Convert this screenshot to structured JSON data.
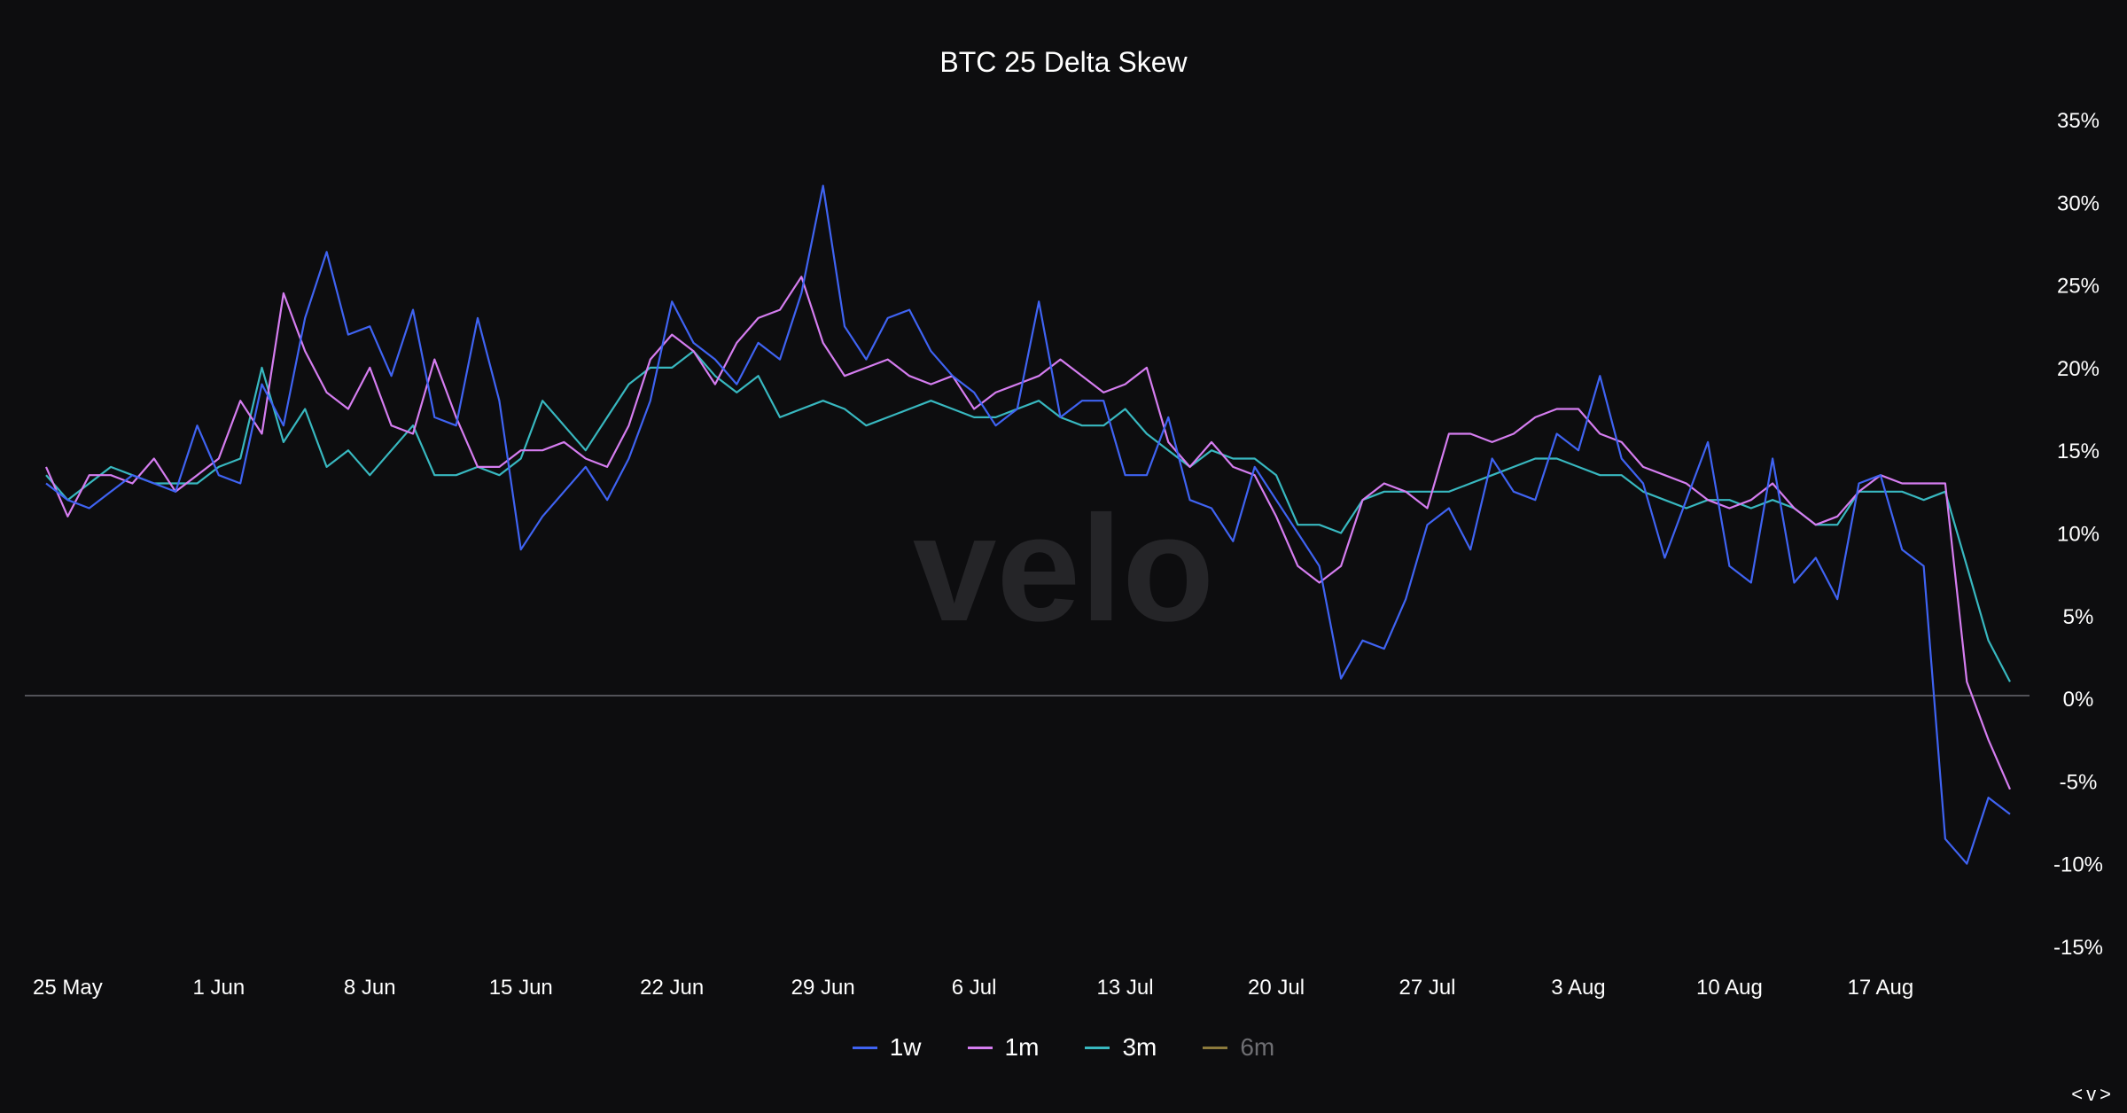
{
  "header": {
    "title": "BTC 25 Delta Skew"
  },
  "watermark": "velo",
  "nav": {
    "arrows": "<v>"
  },
  "legend": [
    {
      "label": "1w",
      "color": "#3f63f2",
      "active": true
    },
    {
      "label": "1m",
      "color": "#d57df0",
      "active": true
    },
    {
      "label": "3m",
      "color": "#38b8c0",
      "active": true
    },
    {
      "label": "6m",
      "color": "#8c7a3c",
      "active": false
    }
  ],
  "chart_data": {
    "type": "line",
    "title": "BTC 25 Delta Skew",
    "xlabel": "",
    "ylabel": "",
    "ylim": [
      -15,
      35
    ],
    "y_axis_position": "right",
    "y_ticks": [
      35,
      30,
      25,
      20,
      15,
      10,
      5,
      0,
      -5,
      -10,
      -15
    ],
    "y_tick_labels": [
      "35%",
      "30%",
      "25%",
      "20%",
      "15%",
      "10%",
      "5%",
      "0%",
      "-5%",
      "-10%",
      "-15%"
    ],
    "x_range": [
      "2023-05-24",
      "2023-08-23"
    ],
    "x_tick_labels": [
      "25 May",
      "1 Jun",
      "8 Jun",
      "15 Jun",
      "22 Jun",
      "29 Jun",
      "6 Jul",
      "13 Jul",
      "20 Jul",
      "27 Jul",
      "3 Aug",
      "10 Aug",
      "17 Aug"
    ],
    "x_tick_dates": [
      "2023-05-25",
      "2023-06-01",
      "2023-06-08",
      "2023-06-15",
      "2023-06-22",
      "2023-06-29",
      "2023-07-06",
      "2023-07-13",
      "2023-07-20",
      "2023-07-27",
      "2023-08-03",
      "2023-08-10",
      "2023-08-17"
    ],
    "zero_line": true,
    "legend_position": "bottom-center",
    "series": [
      {
        "name": "1w",
        "color": "#3f63f2",
        "x": [
          "2023-05-24",
          "2023-05-25",
          "2023-05-26",
          "2023-05-27",
          "2023-05-28",
          "2023-05-29",
          "2023-05-30",
          "2023-05-31",
          "2023-06-01",
          "2023-06-02",
          "2023-06-03",
          "2023-06-04",
          "2023-06-05",
          "2023-06-06",
          "2023-06-07",
          "2023-06-08",
          "2023-06-09",
          "2023-06-10",
          "2023-06-11",
          "2023-06-12",
          "2023-06-13",
          "2023-06-14",
          "2023-06-15",
          "2023-06-16",
          "2023-06-17",
          "2023-06-18",
          "2023-06-19",
          "2023-06-20",
          "2023-06-21",
          "2023-06-22",
          "2023-06-23",
          "2023-06-24",
          "2023-06-25",
          "2023-06-26",
          "2023-06-27",
          "2023-06-28",
          "2023-06-29",
          "2023-06-30",
          "2023-07-01",
          "2023-07-02",
          "2023-07-03",
          "2023-07-04",
          "2023-07-05",
          "2023-07-06",
          "2023-07-07",
          "2023-07-08",
          "2023-07-09",
          "2023-07-10",
          "2023-07-11",
          "2023-07-12",
          "2023-07-13",
          "2023-07-14",
          "2023-07-15",
          "2023-07-16",
          "2023-07-17",
          "2023-07-18",
          "2023-07-19",
          "2023-07-20",
          "2023-07-21",
          "2023-07-22",
          "2023-07-23",
          "2023-07-24",
          "2023-07-25",
          "2023-07-26",
          "2023-07-27",
          "2023-07-28",
          "2023-07-29",
          "2023-07-30",
          "2023-07-31",
          "2023-08-01",
          "2023-08-02",
          "2023-08-03",
          "2023-08-04",
          "2023-08-05",
          "2023-08-06",
          "2023-08-07",
          "2023-08-08",
          "2023-08-09",
          "2023-08-10",
          "2023-08-11",
          "2023-08-12",
          "2023-08-13",
          "2023-08-14",
          "2023-08-15",
          "2023-08-16",
          "2023-08-17",
          "2023-08-18",
          "2023-08-19",
          "2023-08-20",
          "2023-08-21",
          "2023-08-22",
          "2023-08-23"
        ],
        "values": [
          13.0,
          12.0,
          11.5,
          12.5,
          13.5,
          13.0,
          12.5,
          16.5,
          13.5,
          13.0,
          19.0,
          16.5,
          23.0,
          27.0,
          22.0,
          22.5,
          19.5,
          23.5,
          17.0,
          16.5,
          23.0,
          18.0,
          9.0,
          11.0,
          12.5,
          14.0,
          12.0,
          14.5,
          18.0,
          24.0,
          21.5,
          20.5,
          19.0,
          21.5,
          20.5,
          24.5,
          31.0,
          22.5,
          20.5,
          23.0,
          23.5,
          21.0,
          19.5,
          18.5,
          16.5,
          17.5,
          24.0,
          17.0,
          18.0,
          18.0,
          13.5,
          13.5,
          17.0,
          12.0,
          11.5,
          9.5,
          14.0,
          12.0,
          10.0,
          8.0,
          1.2,
          3.5,
          3.0,
          6.0,
          10.5,
          11.5,
          9.0,
          14.5,
          12.5,
          12.0,
          16.0,
          15.0,
          19.5,
          14.5,
          13.0,
          8.5,
          12.0,
          15.5,
          8.0,
          7.0,
          14.5,
          7.0,
          8.5,
          6.0,
          13.0,
          13.5,
          9.0,
          8.0,
          -8.5,
          -10.0,
          -6.0,
          -7.0
        ]
      },
      {
        "name": "1m",
        "color": "#d57df0",
        "x": [
          "2023-05-24",
          "2023-05-25",
          "2023-05-26",
          "2023-05-27",
          "2023-05-28",
          "2023-05-29",
          "2023-05-30",
          "2023-05-31",
          "2023-06-01",
          "2023-06-02",
          "2023-06-03",
          "2023-06-04",
          "2023-06-05",
          "2023-06-06",
          "2023-06-07",
          "2023-06-08",
          "2023-06-09",
          "2023-06-10",
          "2023-06-11",
          "2023-06-12",
          "2023-06-13",
          "2023-06-14",
          "2023-06-15",
          "2023-06-16",
          "2023-06-17",
          "2023-06-18",
          "2023-06-19",
          "2023-06-20",
          "2023-06-21",
          "2023-06-22",
          "2023-06-23",
          "2023-06-24",
          "2023-06-25",
          "2023-06-26",
          "2023-06-27",
          "2023-06-28",
          "2023-06-29",
          "2023-06-30",
          "2023-07-01",
          "2023-07-02",
          "2023-07-03",
          "2023-07-04",
          "2023-07-05",
          "2023-07-06",
          "2023-07-07",
          "2023-07-08",
          "2023-07-09",
          "2023-07-10",
          "2023-07-11",
          "2023-07-12",
          "2023-07-13",
          "2023-07-14",
          "2023-07-15",
          "2023-07-16",
          "2023-07-17",
          "2023-07-18",
          "2023-07-19",
          "2023-07-20",
          "2023-07-21",
          "2023-07-22",
          "2023-07-23",
          "2023-07-24",
          "2023-07-25",
          "2023-07-26",
          "2023-07-27",
          "2023-07-28",
          "2023-07-29",
          "2023-07-30",
          "2023-07-31",
          "2023-08-01",
          "2023-08-02",
          "2023-08-03",
          "2023-08-04",
          "2023-08-05",
          "2023-08-06",
          "2023-08-07",
          "2023-08-08",
          "2023-08-09",
          "2023-08-10",
          "2023-08-11",
          "2023-08-12",
          "2023-08-13",
          "2023-08-14",
          "2023-08-15",
          "2023-08-16",
          "2023-08-17",
          "2023-08-18",
          "2023-08-19",
          "2023-08-20",
          "2023-08-21",
          "2023-08-22",
          "2023-08-23"
        ],
        "values": [
          14.0,
          11.0,
          13.5,
          13.5,
          13.0,
          14.5,
          12.5,
          13.5,
          14.5,
          18.0,
          16.0,
          24.5,
          21.0,
          18.5,
          17.5,
          20.0,
          16.5,
          16.0,
          20.5,
          17.0,
          14.0,
          14.0,
          15.0,
          15.0,
          15.5,
          14.5,
          14.0,
          16.5,
          20.5,
          22.0,
          21.0,
          19.0,
          21.5,
          23.0,
          23.5,
          25.5,
          21.5,
          19.5,
          20.0,
          20.5,
          19.5,
          19.0,
          19.5,
          17.5,
          18.5,
          19.0,
          19.5,
          20.5,
          19.5,
          18.5,
          19.0,
          20.0,
          15.5,
          14.0,
          15.5,
          14.0,
          13.5,
          11.0,
          8.0,
          7.0,
          8.0,
          12.0,
          13.0,
          12.5,
          11.5,
          16.0,
          16.0,
          15.5,
          16.0,
          17.0,
          17.5,
          17.5,
          16.0,
          15.5,
          14.0,
          13.5,
          13.0,
          12.0,
          11.5,
          12.0,
          13.0,
          11.5,
          10.5,
          11.0,
          12.5,
          13.5,
          13.0,
          13.0,
          13.0,
          1.0,
          -2.5,
          -5.5
        ]
      },
      {
        "name": "3m",
        "color": "#38b8c0",
        "x": [
          "2023-05-24",
          "2023-05-25",
          "2023-05-26",
          "2023-05-27",
          "2023-05-28",
          "2023-05-29",
          "2023-05-30",
          "2023-05-31",
          "2023-06-01",
          "2023-06-02",
          "2023-06-03",
          "2023-06-04",
          "2023-06-05",
          "2023-06-06",
          "2023-06-07",
          "2023-06-08",
          "2023-06-09",
          "2023-06-10",
          "2023-06-11",
          "2023-06-12",
          "2023-06-13",
          "2023-06-14",
          "2023-06-15",
          "2023-06-16",
          "2023-06-17",
          "2023-06-18",
          "2023-06-19",
          "2023-06-20",
          "2023-06-21",
          "2023-06-22",
          "2023-06-23",
          "2023-06-24",
          "2023-06-25",
          "2023-06-26",
          "2023-06-27",
          "2023-06-28",
          "2023-06-29",
          "2023-06-30",
          "2023-07-01",
          "2023-07-02",
          "2023-07-03",
          "2023-07-04",
          "2023-07-05",
          "2023-07-06",
          "2023-07-07",
          "2023-07-08",
          "2023-07-09",
          "2023-07-10",
          "2023-07-11",
          "2023-07-12",
          "2023-07-13",
          "2023-07-14",
          "2023-07-15",
          "2023-07-16",
          "2023-07-17",
          "2023-07-18",
          "2023-07-19",
          "2023-07-20",
          "2023-07-21",
          "2023-07-22",
          "2023-07-23",
          "2023-07-24",
          "2023-07-25",
          "2023-07-26",
          "2023-07-27",
          "2023-07-28",
          "2023-07-29",
          "2023-07-30",
          "2023-07-31",
          "2023-08-01",
          "2023-08-02",
          "2023-08-03",
          "2023-08-04",
          "2023-08-05",
          "2023-08-06",
          "2023-08-07",
          "2023-08-08",
          "2023-08-09",
          "2023-08-10",
          "2023-08-11",
          "2023-08-12",
          "2023-08-13",
          "2023-08-14",
          "2023-08-15",
          "2023-08-16",
          "2023-08-17",
          "2023-08-18",
          "2023-08-19",
          "2023-08-20",
          "2023-08-21",
          "2023-08-22",
          "2023-08-23"
        ],
        "values": [
          13.5,
          12.0,
          13.0,
          14.0,
          13.5,
          13.0,
          13.0,
          13.0,
          14.0,
          14.5,
          20.0,
          15.5,
          17.5,
          14.0,
          15.0,
          13.5,
          15.0,
          16.5,
          13.5,
          13.5,
          14.0,
          13.5,
          14.5,
          18.0,
          16.5,
          15.0,
          17.0,
          19.0,
          20.0,
          20.0,
          21.0,
          19.5,
          18.5,
          19.5,
          17.0,
          17.5,
          18.0,
          17.5,
          16.5,
          17.0,
          17.5,
          18.0,
          17.5,
          17.0,
          17.0,
          17.5,
          18.0,
          17.0,
          16.5,
          16.5,
          17.5,
          16.0,
          15.0,
          14.0,
          15.0,
          14.5,
          14.5,
          13.5,
          10.5,
          10.5,
          10.0,
          12.0,
          12.5,
          12.5,
          12.5,
          12.5,
          13.0,
          13.5,
          14.0,
          14.5,
          14.5,
          14.0,
          13.5,
          13.5,
          12.5,
          12.0,
          11.5,
          12.0,
          12.0,
          11.5,
          12.0,
          11.5,
          10.5,
          10.5,
          12.5,
          12.5,
          12.5,
          12.0,
          12.5,
          8.0,
          3.5,
          1.0
        ]
      }
    ]
  }
}
